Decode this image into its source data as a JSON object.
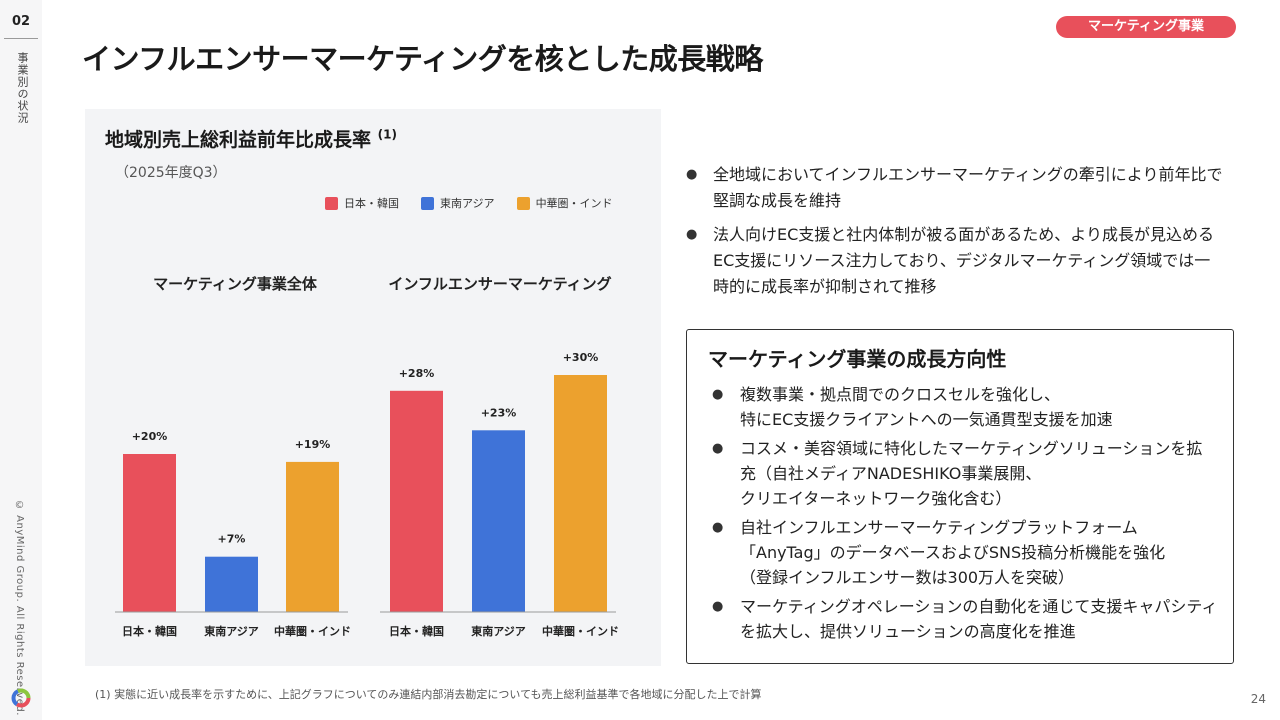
{
  "side": {
    "page_section_number": "02",
    "section_label": "事業別の状況",
    "copyright": "© AnyMind Group. All Rights Reserved."
  },
  "tag": "マーケティング事業",
  "title": "インフルエンサーマーケティングを核とした成長戦略",
  "panel": {
    "title": "地域別売上総利益前年比成長率",
    "title_note": "(1)",
    "subtitle": "（2025年度Q3）"
  },
  "legend": [
    {
      "label": "日本・韓国",
      "color": "#e8505b"
    },
    {
      "label": "東南アジア",
      "color": "#3f73d8"
    },
    {
      "label": "中華圏・インド",
      "color": "#eca12e"
    }
  ],
  "chart_data": [
    {
      "type": "bar",
      "title": "マーケティング事業全体",
      "categories": [
        "日本・韓国",
        "東南アジア",
        "中華圏・インド"
      ],
      "values": [
        20,
        7,
        19
      ],
      "labels": [
        "+20%",
        "+7%",
        "+19%"
      ],
      "colors": [
        "#e8505b",
        "#3f73d8",
        "#eca12e"
      ],
      "unit": "%",
      "ylim": [
        0,
        30
      ]
    },
    {
      "type": "bar",
      "title": "インフルエンサーマーケティング",
      "categories": [
        "日本・韓国",
        "東南アジア",
        "中華圏・インド"
      ],
      "values": [
        28,
        23,
        30
      ],
      "labels": [
        "+28%",
        "+23%",
        "+30%"
      ],
      "colors": [
        "#e8505b",
        "#3f73d8",
        "#eca12e"
      ],
      "unit": "%",
      "ylim": [
        0,
        30
      ]
    }
  ],
  "bullets": [
    "全地域においてインフルエンサーマーケティングの牽引により前年比で堅調な成長を維持",
    "法人向けEC支援と社内体制が被る面があるため、より成長が見込めるEC支援にリソース注力しており、デジタルマーケティング領域では一時的に成長率が抑制されて推移"
  ],
  "box": {
    "title": "マーケティング事業の成長方向性",
    "items": [
      "複数事業・拠点間でのクロスセルを強化し、\n特にEC支援クライアントへの一気通貫型支援を加速",
      "コスメ・美容領域に特化したマーケティングソリューションを拡充（自社メディアNADESHIKO事業展開、\nクリエイターネットワーク強化含む）",
      "自社インフルエンサーマーケティングプラットフォーム\n「AnyTag」のデータベースおよびSNS投稿分析機能を強化\n（登録インフルエンサー数は300万人を突破）",
      "マーケティングオペレーションの自動化を通じて支援キャパシティを拡大し、提供ソリューションの高度化を推進"
    ]
  },
  "footnote": "(1) 実態に近い成長率を示すために、上記グラフについてのみ連結内部消去勘定についても売上総利益基準で各地域に分配した上で計算",
  "page_number": "24"
}
